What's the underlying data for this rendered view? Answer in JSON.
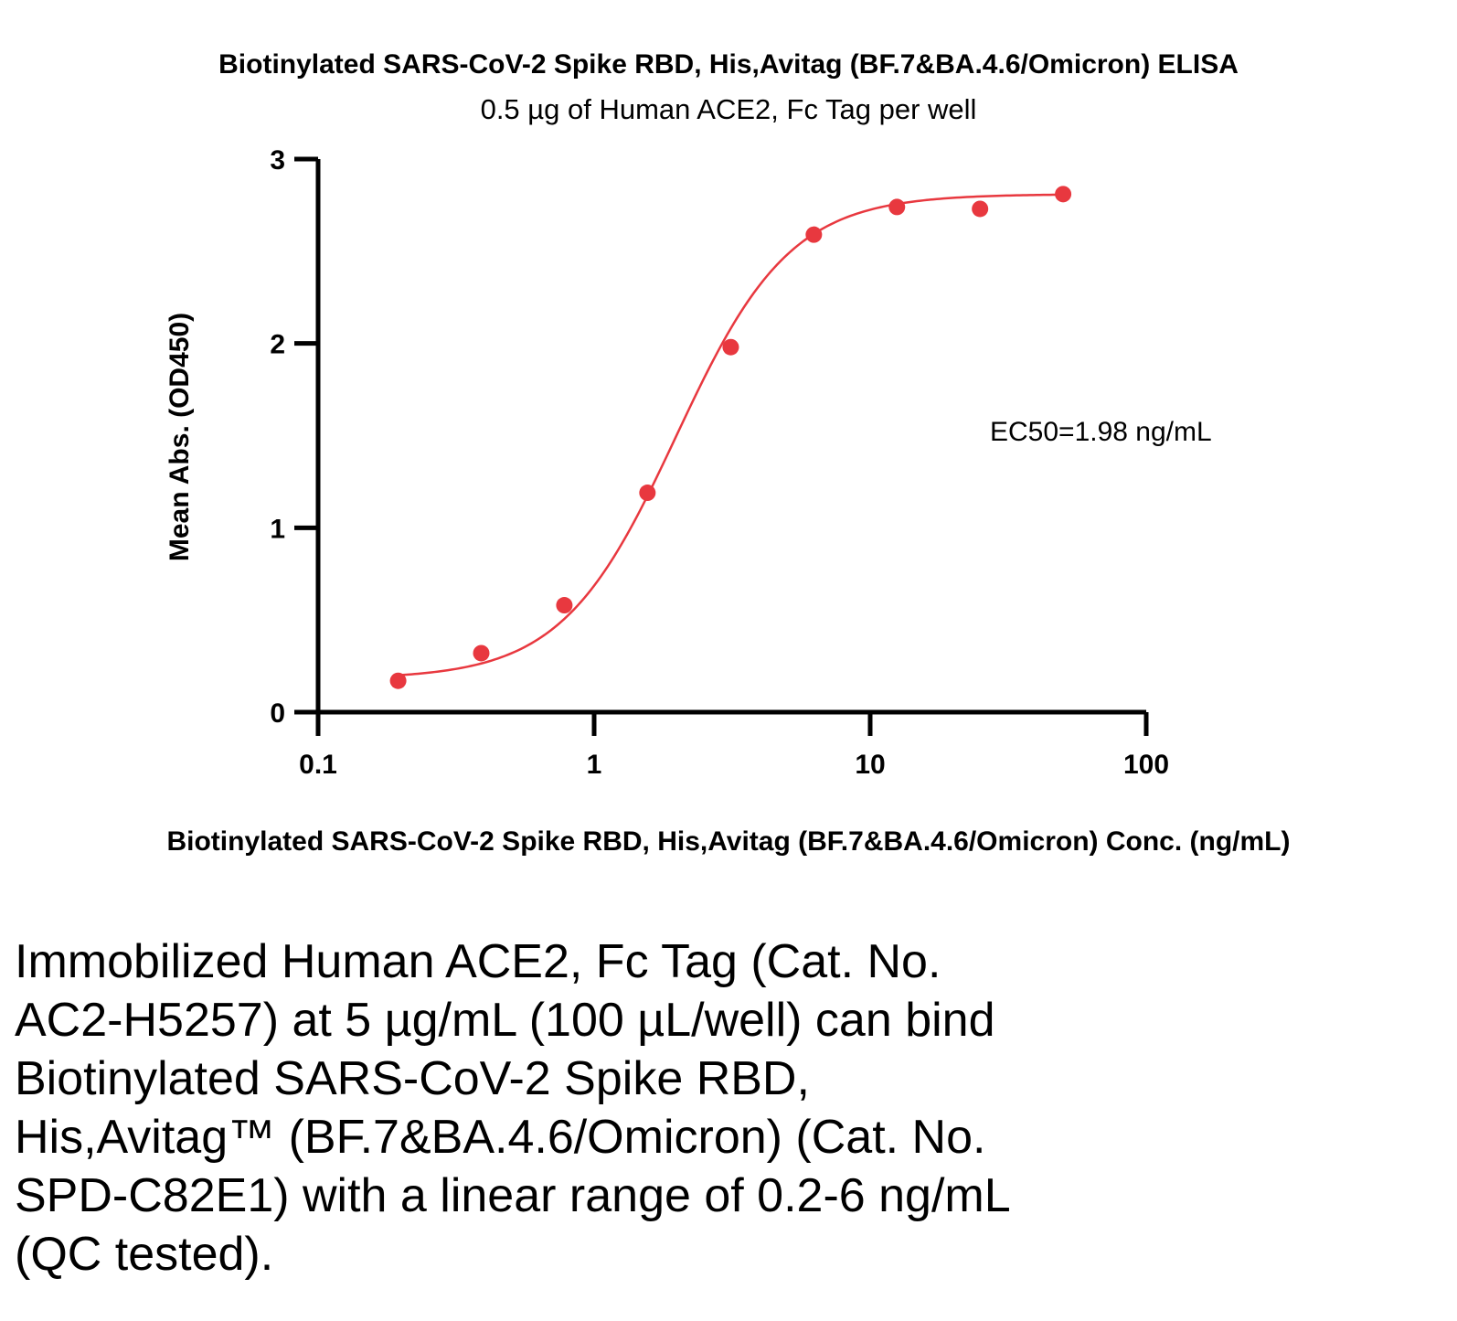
{
  "chart_data": {
    "type": "scatter",
    "title": "Biotinylated SARS-CoV-2 Spike RBD, His,Avitag (BF.7&BA.4.6/Omicron) ELISA",
    "subtitle": "0.5 µg of Human ACE2, Fc Tag per well",
    "xlabel": "Biotinylated SARS-CoV-2 Spike RBD, His,Avitag (BF.7&BA.4.6/Omicron) Conc. (ng/mL)",
    "ylabel": "Mean Abs. (OD450)",
    "x_scale": "log",
    "xlim": [
      0.1,
      100
    ],
    "ylim": [
      0,
      3
    ],
    "x_ticks": [
      "0.1",
      "1",
      "10",
      "100"
    ],
    "y_ticks": [
      "0",
      "1",
      "2",
      "3"
    ],
    "grid": false,
    "color": "#e8383f",
    "series": [
      {
        "x": [
          0.195,
          0.39,
          0.78,
          1.56,
          3.125,
          6.25,
          12.5,
          25,
          50
        ],
        "y": [
          0.17,
          0.32,
          0.58,
          1.19,
          1.98,
          2.59,
          2.74,
          2.73,
          2.81
        ]
      }
    ],
    "fit": {
      "type": "4PL",
      "bottom": 0.18,
      "top": 2.81,
      "ec50": 1.98,
      "hill": 2.1
    },
    "annotation": "EC50=1.98 ng/mL"
  },
  "caption": "Immobilized Human ACE2, Fc Tag (Cat. No.\nAC2-H5257) at 5 µg/mL (100 µL/well) can bind\nBiotinylated SARS-CoV-2 Spike RBD,\nHis,Avitag™ (BF.7&BA.4.6/Omicron) (Cat. No.\nSPD-C82E1) with a linear range of 0.2-6 ng/mL\n(QC tested)."
}
